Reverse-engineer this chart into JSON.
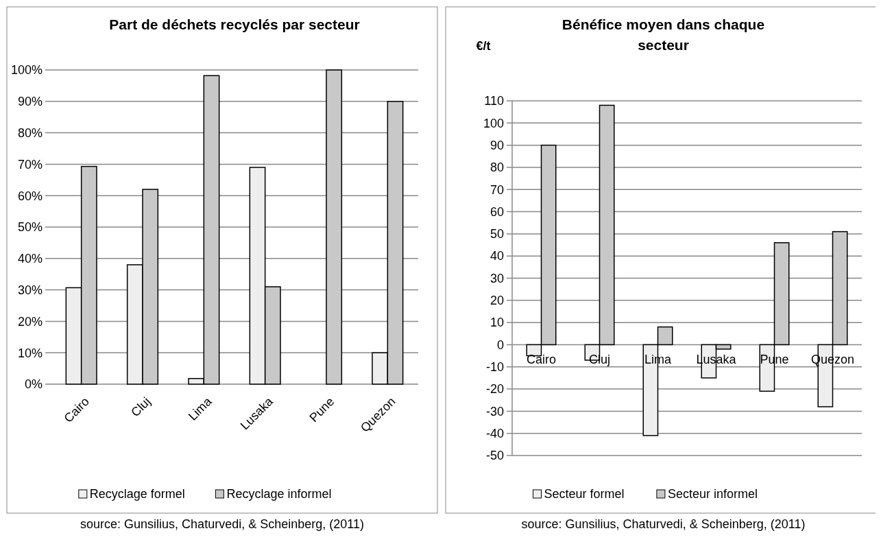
{
  "chart_data": [
    {
      "type": "bar",
      "title": "Part de déchets recyclés par secteur",
      "categories": [
        "Cairo",
        "Cluj",
        "Lima",
        "Lusaka",
        "Pune",
        "Quezon"
      ],
      "series": [
        {
          "name": "Recyclage formel",
          "color": "#eeeeee",
          "values": [
            30.7,
            38,
            1.8,
            69,
            0,
            10
          ]
        },
        {
          "name": "Recyclage informel",
          "color": "#c8c8c8",
          "values": [
            69.3,
            62,
            98.2,
            31,
            100,
            90
          ]
        }
      ],
      "ylim": [
        0,
        100
      ],
      "yticks": [
        {
          "value": 0,
          "label": "0%"
        },
        {
          "value": 10,
          "label": "10%"
        },
        {
          "value": 20,
          "label": "20%"
        },
        {
          "value": 30,
          "label": "30%"
        },
        {
          "value": 40,
          "label": "40%"
        },
        {
          "value": 50,
          "label": "50%"
        },
        {
          "value": 60,
          "label": "60%"
        },
        {
          "value": 70,
          "label": "70%"
        },
        {
          "value": 80,
          "label": "80%"
        },
        {
          "value": 90,
          "label": "90%"
        },
        {
          "value": 100,
          "label": "100%"
        }
      ],
      "grid": "y",
      "legend": "bottom",
      "annotations": [
        "source: Gunsilius, Chaturvedi, & Scheinberg, (2011)"
      ]
    },
    {
      "type": "bar",
      "title": "Bénéfice moyen dans chaque secteur",
      "ylabel": "€/t",
      "categories": [
        "Cairo",
        "Cluj",
        "Lima",
        "Lusaka",
        "Pune",
        "Quezon"
      ],
      "series": [
        {
          "name": "Secteur formel",
          "color": "#eeeeee",
          "values": [
            -5,
            -7,
            -41,
            -15,
            -21,
            -28
          ]
        },
        {
          "name": "Secteur informel",
          "color": "#c8c8c8",
          "values": [
            90,
            108,
            8,
            -2,
            46,
            51
          ]
        }
      ],
      "ylim": [
        -50,
        110
      ],
      "yticks": [
        -50,
        -40,
        -30,
        -20,
        -10,
        0,
        10,
        20,
        30,
        40,
        50,
        60,
        70,
        80,
        90,
        100,
        110
      ],
      "grid": "y",
      "legend": "bottom",
      "annotations": [
        "source: Gunsilius, Chaturvedi, & Scheinberg, (2011)"
      ]
    }
  ]
}
